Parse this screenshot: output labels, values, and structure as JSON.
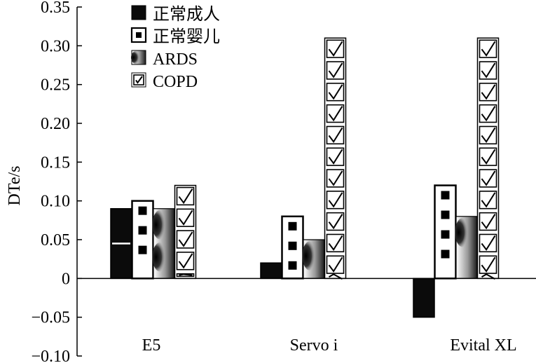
{
  "chart_data": {
    "type": "bar",
    "categories": [
      "E5",
      "Servo i",
      "Evital XL"
    ],
    "series": [
      {
        "name": "正常成人",
        "values": [
          0.09,
          0.02,
          -0.05
        ],
        "pattern": "solid-black"
      },
      {
        "name": "正常婴儿",
        "values": [
          0.1,
          0.08,
          0.12
        ],
        "pattern": "white-black-squares"
      },
      {
        "name": "ARDS",
        "values": [
          0.09,
          0.05,
          0.08
        ],
        "pattern": "gradient"
      },
      {
        "name": "COPD",
        "values": [
          0.12,
          0.31,
          0.31
        ],
        "pattern": "checkbox"
      }
    ],
    "xlabel": "",
    "ylabel": "DTe/s",
    "ylim": [
      -0.1,
      0.35
    ],
    "yticks": [
      {
        "value": 0.35,
        "label": "0.35"
      },
      {
        "value": 0.3,
        "label": "0.30"
      },
      {
        "value": 0.25,
        "label": "0.25"
      },
      {
        "value": 0.2,
        "label": "0.20"
      },
      {
        "value": 0.15,
        "label": "0.15"
      },
      {
        "value": 0.1,
        "label": "0.10"
      },
      {
        "value": 0.05,
        "label": "0.05"
      },
      {
        "value": 0,
        "label": "0"
      },
      {
        "value": -0.05,
        "label": "−0.05"
      },
      {
        "value": -0.1,
        "label": "−0.10"
      }
    ],
    "grid": false,
    "legend": "top-left"
  }
}
